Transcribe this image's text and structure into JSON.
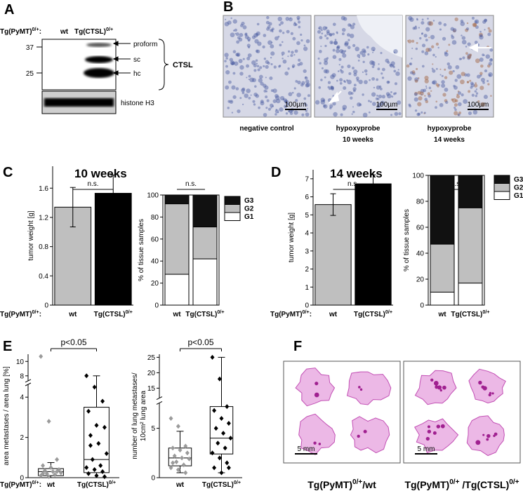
{
  "panel_a": {
    "letter": "A",
    "row_label": [
      "Tg(PyMT)",
      {
        "sup": "0/+"
      },
      ":"
    ],
    "lanes": [
      "wt",
      [
        "Tg(CTSL)",
        {
          "sup": "0/+"
        }
      ]
    ],
    "markers": [
      37,
      25
    ],
    "bands": [
      "proform",
      "sc",
      "hc"
    ],
    "protein": "CTSL",
    "loading_control": "histone H3"
  },
  "panel_b": {
    "letter": "B",
    "scale_bars": [
      "100µm",
      "100µm",
      "100µm"
    ],
    "captions": [
      [
        "negative control"
      ],
      [
        "hypoxyprobe",
        "10 weeks"
      ],
      [
        "hypoxyprobe",
        "14 weeks"
      ]
    ]
  },
  "panel_c": {
    "letter": "C",
    "title": "10 weeks"
  },
  "panel_d": {
    "letter": "D",
    "title": "14 weeks"
  },
  "panel_e": {
    "letter": "E"
  },
  "panel_f": {
    "letter": "F",
    "scale_bars": [
      "5 mm",
      "5 mm"
    ],
    "captions": [
      [
        "Tg(PyMT)",
        {
          "sup": "0/+"
        },
        "/wt"
      ],
      [
        "Tg(PyMT)",
        {
          "sup": "0/+"
        },
        " /Tg(CTSL)",
        {
          "sup": "0/+"
        }
      ]
    ]
  },
  "chart_data": [
    {
      "type": "bar",
      "ylabel": "tumor weight [g]",
      "row_label": [
        "Tg(PyMT)",
        {
          "sup": "0/+"
        },
        ":"
      ],
      "categories": [
        "wt",
        [
          "Tg(CTSL)",
          {
            "sup": "0/+"
          }
        ]
      ],
      "values": [
        1.34,
        1.53
      ],
      "errors": [
        0.27,
        0.25
      ],
      "colors": [
        "#bfbfbf",
        "#000000"
      ],
      "ylim": [
        0,
        1.9
      ],
      "yticks": [
        0,
        0.4,
        0.8,
        1.2,
        1.6
      ],
      "annotation": "n.s."
    },
    {
      "type": "stacked_bar",
      "ylabel": "% of tissue samples",
      "categories": [
        "wt",
        [
          "Tg(CTSL)",
          {
            "sup": "0/+"
          }
        ]
      ],
      "series": [
        {
          "name": "G1",
          "color": "#ffffff",
          "values": [
            28,
            42
          ]
        },
        {
          "name": "G2",
          "color": "#bfbfbf",
          "values": [
            64,
            29
          ]
        },
        {
          "name": "G3",
          "color": "#111111",
          "values": [
            8,
            29
          ]
        }
      ],
      "ylim": [
        0,
        100
      ],
      "yticks": [
        0,
        20,
        40,
        60,
        80,
        100
      ],
      "annotation": "n.s."
    },
    {
      "type": "bar",
      "ylabel": "tumor weight [g]",
      "row_label": [
        "Tg(PyMT)",
        {
          "sup": "0/+"
        },
        ":"
      ],
      "categories": [
        "wt",
        [
          "Tg(CTSL)",
          {
            "sup": "0/+"
          }
        ]
      ],
      "values": [
        5.57,
        6.72
      ],
      "errors": [
        0.6,
        0.5
      ],
      "colors": [
        "#bfbfbf",
        "#000000"
      ],
      "ylim": [
        0,
        7.5
      ],
      "yticks": [
        0,
        1,
        2,
        3,
        4,
        5,
        6,
        7
      ],
      "annotation": "n.s."
    },
    {
      "type": "stacked_bar",
      "ylabel": "% of tissue samples",
      "categories": [
        "wt",
        [
          "Tg(CTSL)",
          {
            "sup": "0/+"
          }
        ]
      ],
      "series": [
        {
          "name": "G1",
          "color": "#ffffff",
          "values": [
            10,
            17
          ]
        },
        {
          "name": "G2",
          "color": "#bfbfbf",
          "values": [
            37,
            58
          ]
        },
        {
          "name": "G3",
          "color": "#111111",
          "values": [
            53,
            25
          ]
        }
      ],
      "ylim": [
        0,
        100
      ],
      "yticks": [
        0,
        20,
        40,
        60,
        80,
        100
      ],
      "annotation": "n.s."
    },
    {
      "type": "box",
      "ylabel": "area metastases / area lung [%]",
      "row_label": [
        "Tg(PyMT)",
        {
          "sup": "0/+"
        },
        ":"
      ],
      "categories": [
        "wt",
        [
          "Tg(CTSL)",
          {
            "sup": "0/+"
          }
        ]
      ],
      "colors": [
        "#9a9a9a",
        "#000000"
      ],
      "ylim": [
        0,
        11
      ],
      "y_break": [
        4.6,
        7.4
      ],
      "yticks": [
        0,
        2,
        4,
        8,
        10
      ],
      "annotation": "p<0.05",
      "boxes": [
        {
          "whisker_low": 0,
          "q1": 0.1,
          "median": 0.3,
          "q3": 0.45,
          "whisker_high": 0.75,
          "points": [
            10.7,
            2.8,
            0.9,
            0.6,
            0.5,
            0.4,
            0.35,
            0.3,
            0.25,
            0.2,
            0.15,
            0.1,
            0.05,
            0.3,
            0.2
          ]
        },
        {
          "whisker_low": 0,
          "q1": 0.25,
          "median": 0.9,
          "q3": 3.5,
          "whisker_high": 8.0,
          "points": [
            8.0,
            4.5,
            3.8,
            3.3,
            2.6,
            2.5,
            2.1,
            1.7,
            1.2,
            0.9,
            0.6,
            0.5,
            0.4,
            0.3,
            0.2,
            0.1,
            0.05,
            1.6
          ]
        }
      ]
    },
    {
      "type": "box",
      "ylabel": [
        "number of lung metastases/",
        "10cm² lung area"
      ],
      "categories": [
        "wt",
        [
          "Tg(CTSL)",
          {
            "sup": "0/+"
          }
        ]
      ],
      "colors": [
        "#9a9a9a",
        "#000000"
      ],
      "ylim": [
        0,
        26
      ],
      "y_break": [
        7.5,
        12
      ],
      "yticks": [
        0,
        5,
        15,
        20,
        25
      ],
      "annotation": "p<0.05",
      "boxes": [
        {
          "whisker_low": 0.5,
          "q1": 1.2,
          "median": 2.0,
          "q3": 3.0,
          "whisker_high": 4.7,
          "points": [
            6.0,
            5.2,
            3.2,
            3.0,
            2.8,
            2.5,
            2.2,
            2.0,
            1.9,
            1.6,
            1.3,
            1.0,
            0.8,
            0.5,
            1.5
          ]
        },
        {
          "whisker_low": 0.5,
          "q1": 2.4,
          "median": 4.0,
          "q3": 7.2,
          "whisker_high": 25,
          "points": [
            25,
            18,
            7.2,
            6.8,
            6.0,
            5.5,
            5.0,
            4.5,
            4.0,
            3.5,
            3.0,
            2.5,
            2.0,
            1.5,
            1.0,
            0.5,
            1.0
          ]
        }
      ]
    }
  ]
}
